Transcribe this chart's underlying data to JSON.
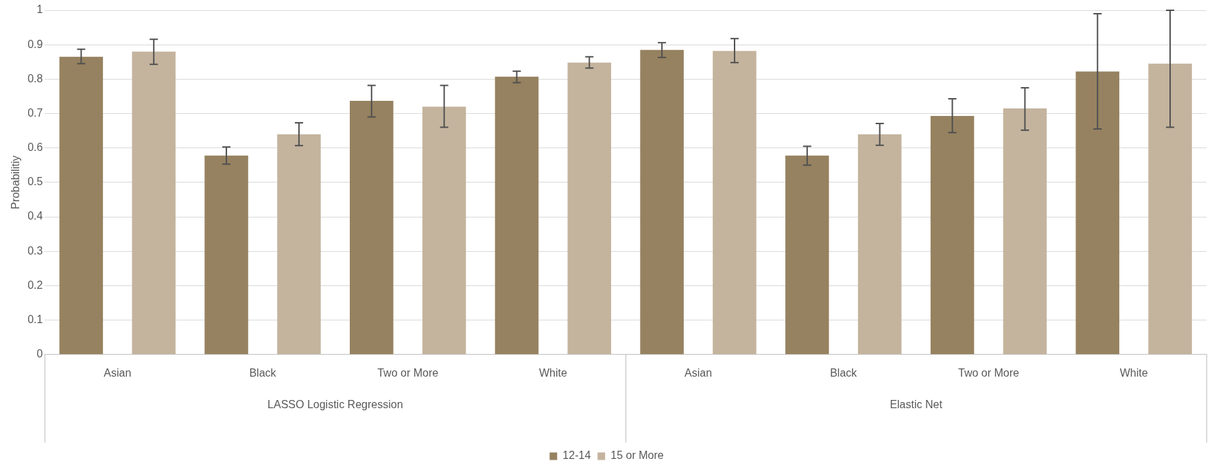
{
  "chart_data": {
    "type": "bar",
    "ylabel": "Probabilitiy",
    "categories": [
      "Asian",
      "Black",
      "Two or More",
      "White",
      "Asian",
      "Black",
      "Two or More",
      "White"
    ],
    "series": [
      {
        "name": "12-14",
        "color": "#968260",
        "values": [
          0.865,
          0.578,
          0.737,
          0.807,
          0.885,
          0.578,
          0.693,
          0.822
        ],
        "errors": [
          [
            0.845,
            0.887
          ],
          [
            0.553,
            0.603
          ],
          [
            0.69,
            0.782
          ],
          [
            0.79,
            0.823
          ],
          [
            0.863,
            0.906
          ],
          [
            0.55,
            0.605
          ],
          [
            0.645,
            0.743
          ],
          [
            0.655,
            0.99
          ]
        ]
      },
      {
        "name": "15 or More",
        "color": "#c4b49e",
        "values": [
          0.88,
          0.64,
          0.72,
          0.848,
          0.882,
          0.64,
          0.715,
          0.845
        ],
        "errors": [
          [
            0.843,
            0.916
          ],
          [
            0.607,
            0.673
          ],
          [
            0.66,
            0.782
          ],
          [
            0.832,
            0.865
          ],
          [
            0.848,
            0.918
          ],
          [
            0.608,
            0.671
          ],
          [
            0.652,
            0.775
          ],
          [
            0.66,
            1.0
          ]
        ]
      }
    ],
    "annotations": [
      "LASSO Logistic Regression",
      "Elastic Net"
    ],
    "ylim": [
      0,
      1
    ],
    "yticks": [
      0,
      0.1,
      0.2,
      0.3,
      0.4,
      0.5,
      0.6,
      0.7,
      0.8,
      0.9,
      1
    ],
    "grid": "y",
    "legend": "bottom"
  }
}
